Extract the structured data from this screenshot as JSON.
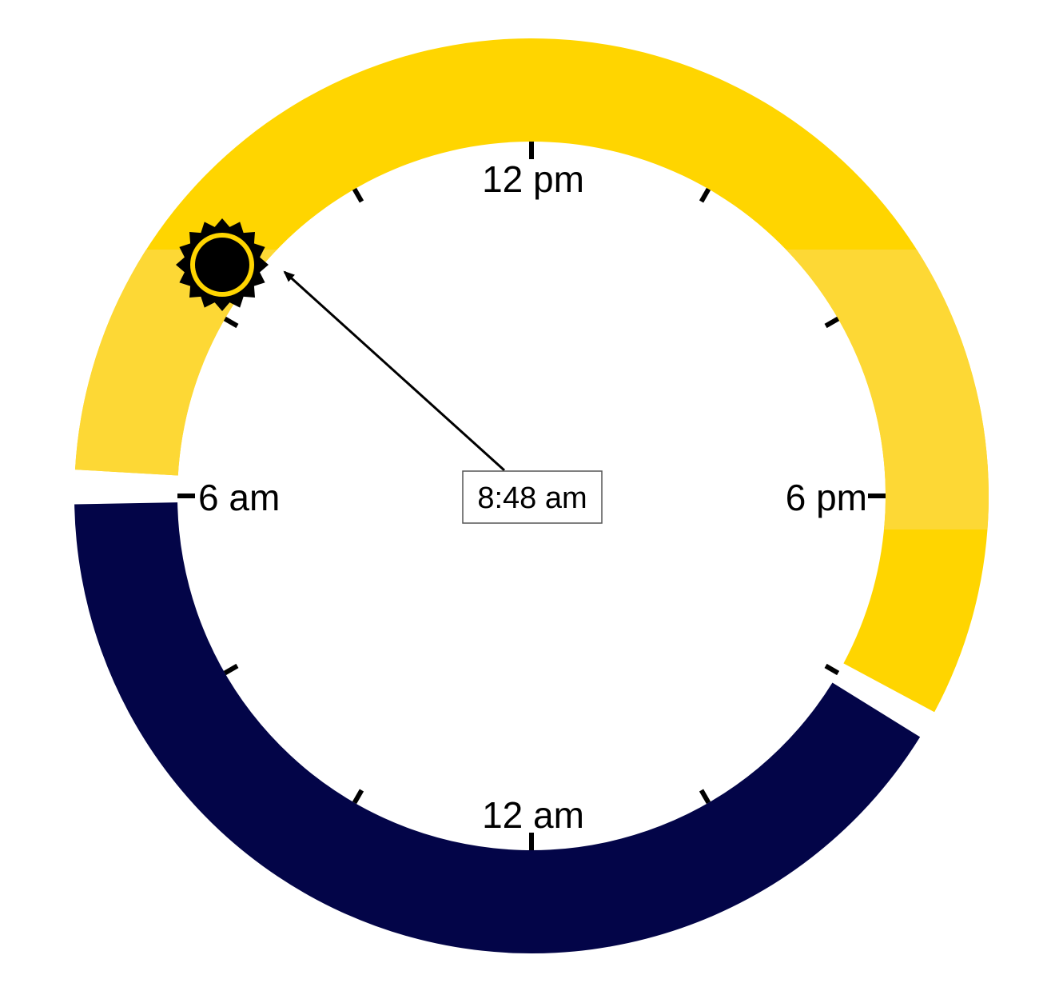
{
  "clock": {
    "labels": {
      "noon": "12 pm",
      "evening": "6 pm",
      "midnight": "12 am",
      "morning": "6 am"
    },
    "current_time_label": "8:48 am",
    "current_time_hours": 8.8,
    "daylight_start_hours": 6.1,
    "daylight_end_hours": 20.0,
    "colors": {
      "day": "#FFD500",
      "day_light": "#FDD835",
      "night": "#030548",
      "sun": "#000000"
    },
    "icons": {
      "sun": "sun-icon",
      "hand": "arrow-hand-icon"
    }
  }
}
